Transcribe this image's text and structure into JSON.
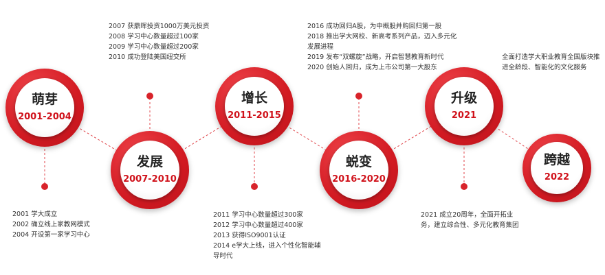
{
  "stages": [
    {
      "name": "萌芽",
      "years": "2001-2004",
      "events": [
        "2001  学大成立",
        "2002  确立线上家教网模式",
        "2004  开设第一家学习中心"
      ]
    },
    {
      "name": "发展",
      "years": "2007-2010",
      "events": [
        "2007  获鼎晖投资1000万美元投资",
        "2008  学习中心数量超过100家",
        "2009  学习中心数量超过200家",
        "2010  成功登陆美国纽交所"
      ]
    },
    {
      "name": "增长",
      "years": "2011-2015",
      "events": [
        "2011  学习中心数量超过300家",
        "2012  学习中心数量超过400家",
        "2013  获得ISO9001认证",
        "2014  e学大上线，进入个性化智能辅导时代"
      ]
    },
    {
      "name": "蜕变",
      "years": "2016-2020",
      "events": [
        "2016  成功回归A股，为中概股并购回归第一股",
        "2018  推出学大网校、新高考系列产品，迈入多元化发展进程",
        "2019  发布“双螺旋”战略，开启智慧教育新时代",
        "2020  创始人回归，成为上市公司第一大股东"
      ]
    },
    {
      "name": "升级",
      "years": "2021",
      "events": [
        "2021  成立20周年，全面开拓业务，建立综合性、多元化教育集团"
      ]
    },
    {
      "name": "跨越",
      "years": "2022",
      "events": [
        "全面打造学大职业教育全国版块推进全龄段、智能化的文化服务"
      ]
    }
  ]
}
